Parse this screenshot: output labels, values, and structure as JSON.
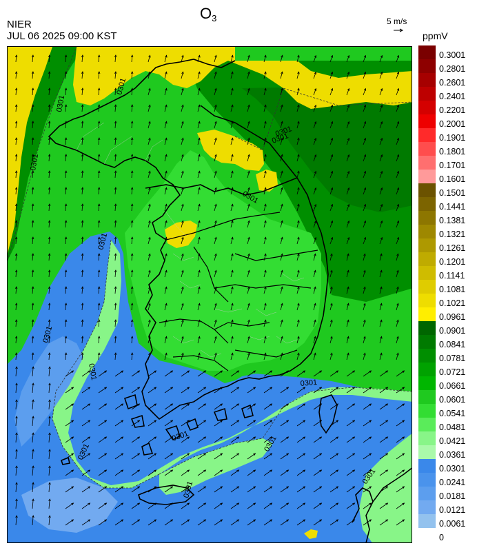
{
  "header": {
    "title": "O",
    "title_subscript": "3",
    "agency": "NIER",
    "timestamp": "JUL 06 2025 09:00 KST",
    "reference_vector_label": "5 m/s",
    "unit": "ppmV"
  },
  "contour_label": "0301",
  "colorbar": {
    "labels": [
      "0.3001",
      "0.2801",
      "0.2601",
      "0.2401",
      "0.2201",
      "0.2001",
      "0.1901",
      "0.1801",
      "0.1701",
      "0.1601",
      "0.1501",
      "0.1441",
      "0.1381",
      "0.1321",
      "0.1261",
      "0.1201",
      "0.1141",
      "0.1081",
      "0.1021",
      "0.0961",
      "0.0901",
      "0.0841",
      "0.0781",
      "0.0721",
      "0.0661",
      "0.0601",
      "0.0541",
      "0.0481",
      "0.0421",
      "0.0361",
      "0.0301",
      "0.0241",
      "0.0181",
      "0.0121",
      "0.0061",
      "0"
    ],
    "colors": [
      "#7a0000",
      "#8e0000",
      "#a60000",
      "#bd0000",
      "#d40000",
      "#ee0000",
      "#ff2a2a",
      "#ff4d4d",
      "#ff6f6f",
      "#ff9a9a",
      "#6b5200",
      "#7c6400",
      "#8d7600",
      "#9e8800",
      "#ae9900",
      "#bfab00",
      "#cfbc00",
      "#dfcc00",
      "#eedd00",
      "#ffee00",
      "#006600",
      "#007a00",
      "#008e00",
      "#00a200",
      "#00b600",
      "#1fc91f",
      "#33dd33",
      "#5aec5a",
      "#88f588",
      "#aaf9aa",
      "#3a88ea",
      "#4a93ec",
      "#5c9eee",
      "#72aaf0",
      "#93c2ee"
    ]
  },
  "legend_colors": {
    "ocean_low": "#3a88ea",
    "ocean_lighter": "#5c9eee",
    "coastal_light_green": "#88f588",
    "land_green": "#1fc91f",
    "land_dark_green": "#008e00",
    "high_yellow": "#eedd00",
    "olive": "#bfab00"
  }
}
